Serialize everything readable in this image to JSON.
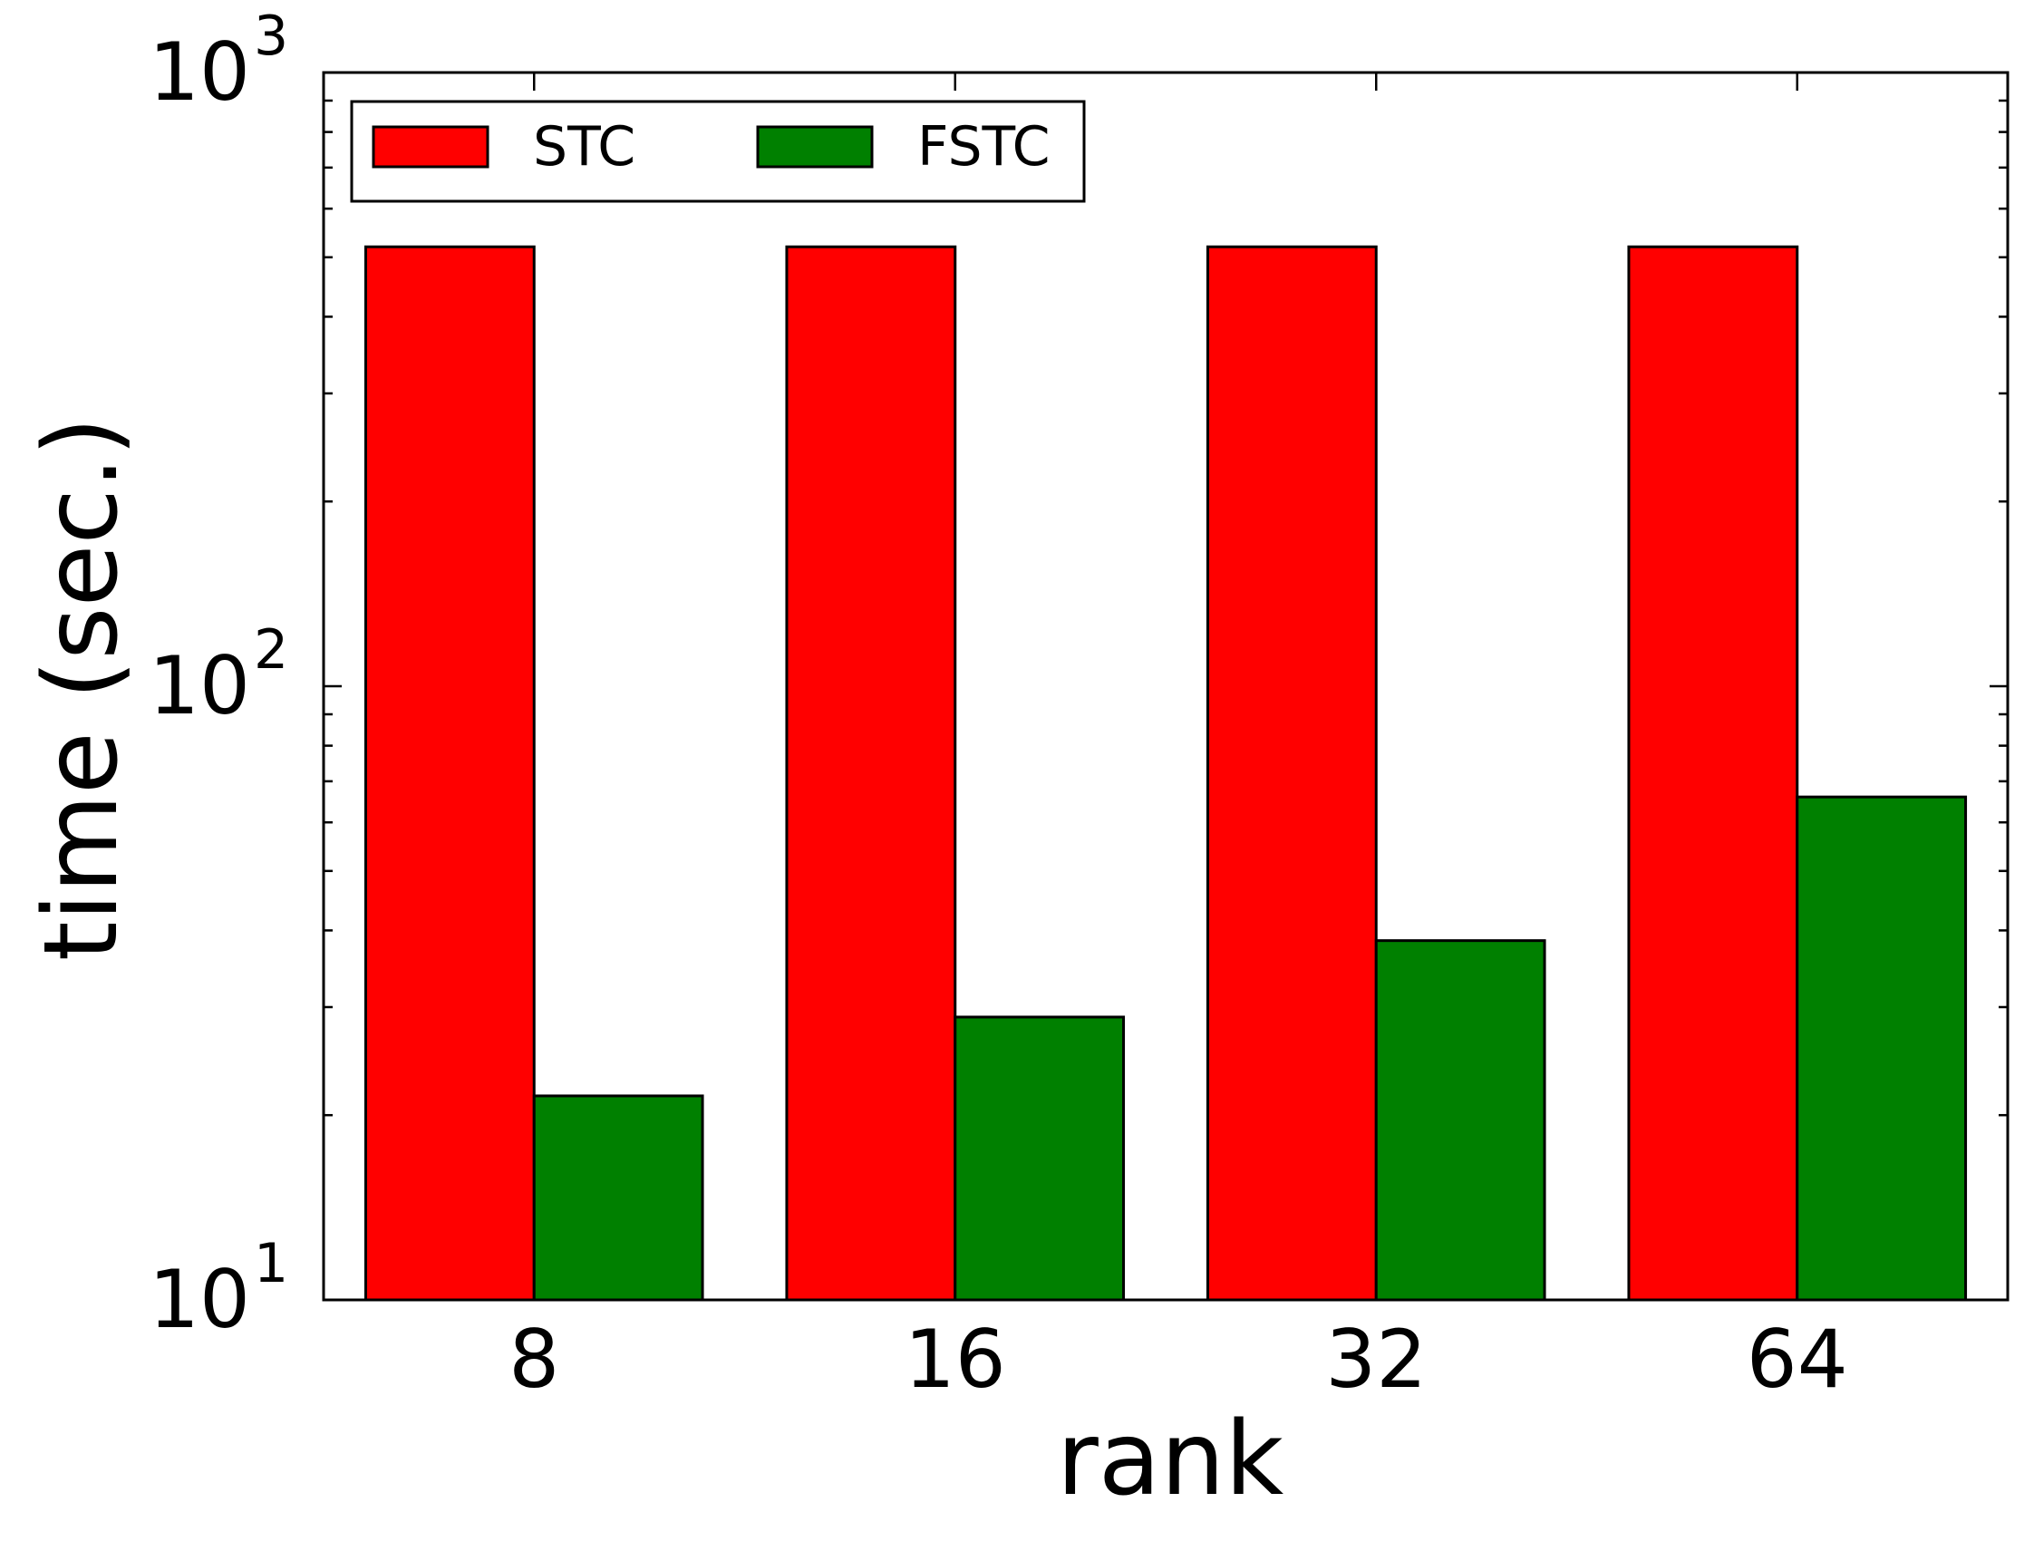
{
  "chart_data": {
    "type": "bar",
    "categories": [
      "8",
      "16",
      "32",
      "64"
    ],
    "series": [
      {
        "name": "STC",
        "values": [
          520,
          520,
          520,
          520
        ],
        "color": "#ff0000"
      },
      {
        "name": "FSTC",
        "values": [
          21.5,
          28.9,
          38.5,
          66.0
        ],
        "color": "#008000"
      }
    ],
    "xlabel": "rank",
    "ylabel": "time (sec.)",
    "yscale": "log",
    "ylim": [
      10,
      1000
    ],
    "y_ticks": [
      {
        "value": 10,
        "base": "10",
        "exp": "1"
      },
      {
        "value": 100,
        "base": "10",
        "exp": "2"
      },
      {
        "value": 1000,
        "base": "10",
        "exp": "3"
      }
    ],
    "grid": false,
    "legend_position": "upper-left"
  }
}
